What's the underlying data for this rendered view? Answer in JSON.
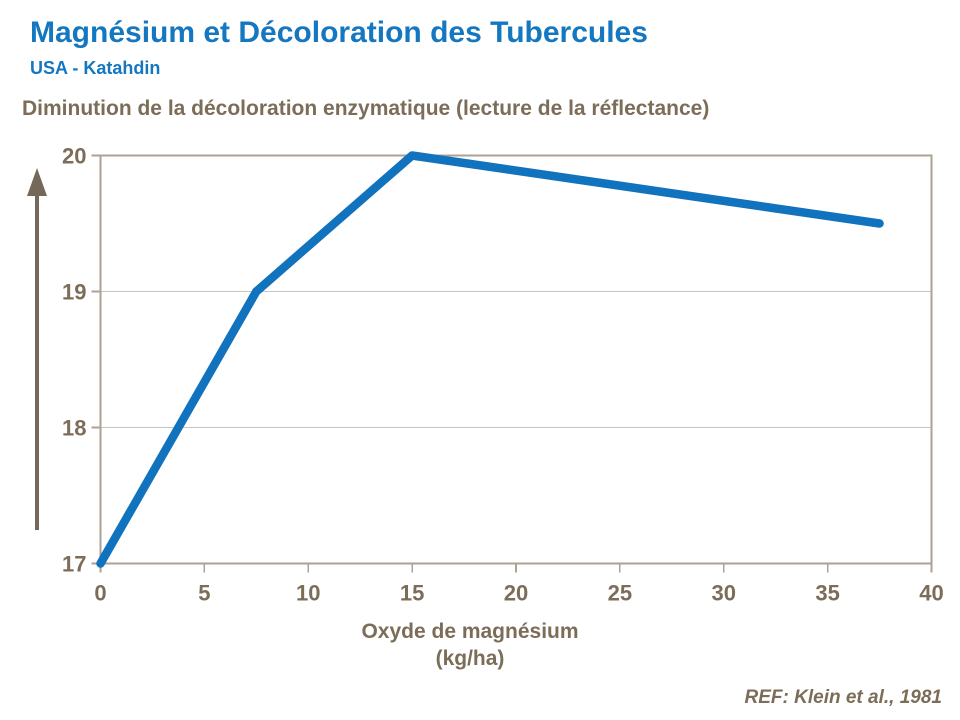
{
  "slide": {
    "title": "Magnésium et Décoloration des Tubercules",
    "subtitle": "USA - Katahdin",
    "reference": "REF: Klein et al., 1981"
  },
  "chart_data": {
    "type": "line",
    "title": "Diminution de la décoloration enzymatique (lecture de la réflectance)",
    "xlabel": "Oxyde de magnésium",
    "xlabel_units": "(kg/ha)",
    "ylabel": "",
    "series": [
      {
        "name": "Lecture de la réflectance",
        "x": [
          0,
          7.5,
          15,
          37.5
        ],
        "y": [
          17,
          19,
          20,
          19.5
        ]
      }
    ],
    "xticks": [
      0,
      5,
      10,
      15,
      20,
      25,
      30,
      35,
      40
    ],
    "yticks": [
      17,
      18,
      19,
      20
    ],
    "xlim": [
      0,
      40
    ],
    "ylim": [
      17,
      20
    ],
    "grid": "horizontal",
    "legend": "none",
    "y_axis_arrow": "up"
  },
  "colors": {
    "title_blue": "#1577C0",
    "line_blue": "#1173BE",
    "text_brown": "#7C6D58",
    "axis_tan": "#ACA294",
    "grid_gray": "#C9C5BE",
    "arrow_brown": "#75685A"
  }
}
